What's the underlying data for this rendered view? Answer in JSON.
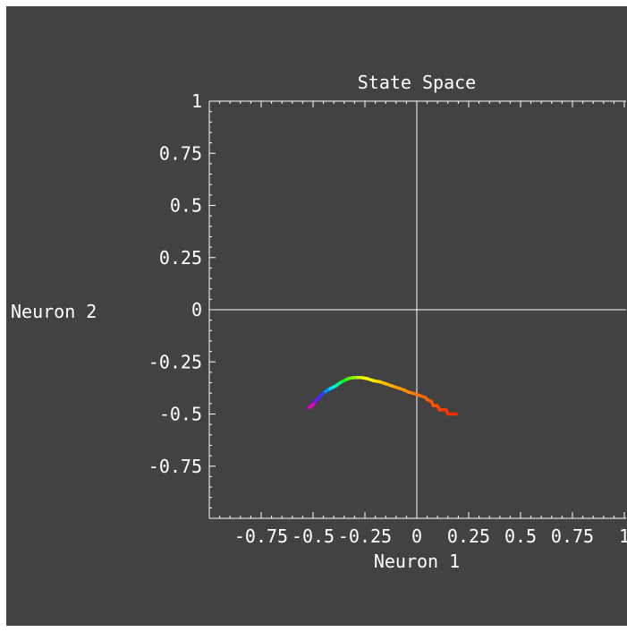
{
  "chart_data": {
    "type": "line",
    "title": "State Space",
    "xlabel": "Neuron 1",
    "ylabel": "Neuron 2",
    "xlim": [
      -1,
      1
    ],
    "ylim": [
      -1,
      1
    ],
    "x_ticks": [
      {
        "value": -0.75,
        "label": "-0.75"
      },
      {
        "value": -0.5,
        "label": "-0.5"
      },
      {
        "value": -0.25,
        "label": "-0.25"
      },
      {
        "value": 0,
        "label": "0"
      },
      {
        "value": 0.25,
        "label": "0.25"
      },
      {
        "value": 0.5,
        "label": "0.5"
      },
      {
        "value": 0.75,
        "label": "0.75"
      },
      {
        "value": 1,
        "label": "1"
      }
    ],
    "y_ticks": [
      {
        "value": 1,
        "label": "1"
      },
      {
        "value": 0.75,
        "label": "0.75"
      },
      {
        "value": 0.5,
        "label": "0.5"
      },
      {
        "value": 0.25,
        "label": "0.25"
      },
      {
        "value": 0,
        "label": "0"
      },
      {
        "value": -0.25,
        "label": "-0.25"
      },
      {
        "value": -0.5,
        "label": "-0.5"
      },
      {
        "value": -0.75,
        "label": "-0.75"
      }
    ],
    "grid": false,
    "background_color": "#424242",
    "axis_color": "#ffffff",
    "trajectory": [
      {
        "x": 0.19,
        "y": -0.5,
        "color": "#ff2a00"
      },
      {
        "x": 0.15,
        "y": -0.5,
        "color": "#ff3300"
      },
      {
        "x": 0.14,
        "y": -0.48,
        "color": "#ff3a00"
      },
      {
        "x": 0.11,
        "y": -0.48,
        "color": "#ff4200"
      },
      {
        "x": 0.1,
        "y": -0.46,
        "color": "#ff4a00"
      },
      {
        "x": 0.08,
        "y": -0.46,
        "color": "#ff5200"
      },
      {
        "x": 0.07,
        "y": -0.44,
        "color": "#ff5a00"
      },
      {
        "x": 0.05,
        "y": -0.43,
        "color": "#ff6200"
      },
      {
        "x": 0.04,
        "y": -0.42,
        "color": "#ff6a00"
      },
      {
        "x": 0.01,
        "y": -0.41,
        "color": "#ff7400"
      },
      {
        "x": -0.02,
        "y": -0.4,
        "color": "#ff7e00"
      },
      {
        "x": -0.04,
        "y": -0.395,
        "color": "#ff8800"
      },
      {
        "x": -0.06,
        "y": -0.385,
        "color": "#ff9400"
      },
      {
        "x": -0.09,
        "y": -0.375,
        "color": "#ffa000"
      },
      {
        "x": -0.12,
        "y": -0.365,
        "color": "#ffb000"
      },
      {
        "x": -0.15,
        "y": -0.355,
        "color": "#ffc400"
      },
      {
        "x": -0.18,
        "y": -0.345,
        "color": "#ffd800"
      },
      {
        "x": -0.21,
        "y": -0.34,
        "color": "#ffea00"
      },
      {
        "x": -0.24,
        "y": -0.33,
        "color": "#f4ff00"
      },
      {
        "x": -0.27,
        "y": -0.325,
        "color": "#c8ff00"
      },
      {
        "x": -0.3,
        "y": -0.325,
        "color": "#8cff00"
      },
      {
        "x": -0.33,
        "y": -0.33,
        "color": "#44ff00"
      },
      {
        "x": -0.35,
        "y": -0.34,
        "color": "#00ff22"
      },
      {
        "x": -0.37,
        "y": -0.35,
        "color": "#00ff88"
      },
      {
        "x": -0.39,
        "y": -0.365,
        "color": "#00ffd0"
      },
      {
        "x": -0.41,
        "y": -0.375,
        "color": "#00d8ff"
      },
      {
        "x": -0.43,
        "y": -0.385,
        "color": "#0090ff"
      },
      {
        "x": -0.45,
        "y": -0.4,
        "color": "#2a40ff"
      },
      {
        "x": -0.47,
        "y": -0.42,
        "color": "#5a20ff"
      },
      {
        "x": -0.49,
        "y": -0.44,
        "color": "#a000ff"
      },
      {
        "x": -0.5,
        "y": -0.455,
        "color": "#ee00cc"
      },
      {
        "x": -0.52,
        "y": -0.47,
        "color": "#ff0044"
      }
    ]
  }
}
